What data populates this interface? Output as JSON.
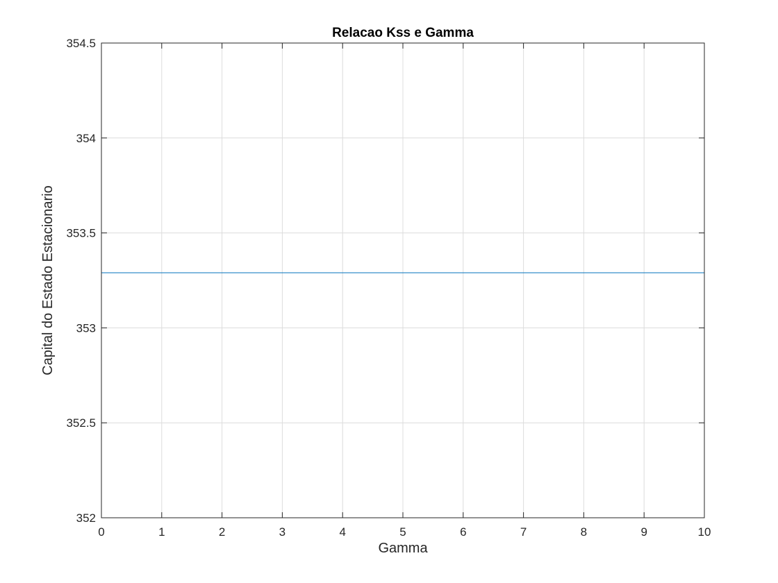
{
  "chart_data": {
    "type": "line",
    "title": "Relacao Kss e Gamma",
    "xlabel": "Gamma",
    "ylabel": "Capital do Estado Estacionario",
    "xlim": [
      0,
      10
    ],
    "ylim": [
      352,
      354.5
    ],
    "xticks": [
      0,
      1,
      2,
      3,
      4,
      5,
      6,
      7,
      8,
      9,
      10
    ],
    "xtick_labels": [
      "0",
      "1",
      "2",
      "3",
      "4",
      "5",
      "6",
      "7",
      "8",
      "9",
      "10"
    ],
    "yticks": [
      352,
      352.5,
      353,
      353.5,
      354,
      354.5
    ],
    "ytick_labels": [
      "352",
      "352.5",
      "353",
      "353.5",
      "354",
      "354.5"
    ],
    "grid": true,
    "box": true,
    "series": [
      {
        "color": "#0072bd",
        "x": [
          0,
          10
        ],
        "y": [
          353.29,
          353.29
        ]
      }
    ],
    "colors": {
      "axis": "#262626",
      "grid": "#dcdcdc",
      "background": "#ffffff"
    }
  }
}
